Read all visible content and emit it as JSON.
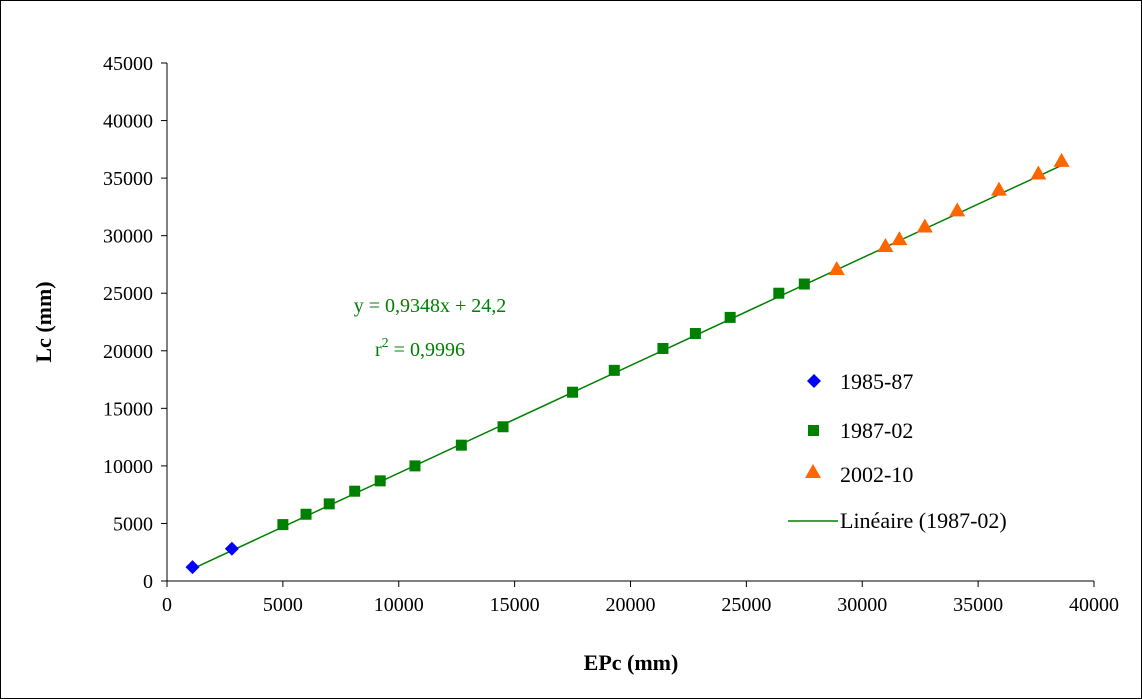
{
  "chart_data": {
    "type": "scatter",
    "xlabel": "EPc (mm)",
    "ylabel": "Lc (mm)",
    "xlim": [
      0,
      40000
    ],
    "ylim": [
      0,
      45000
    ],
    "xticks": [
      "0",
      "5000",
      "10000",
      "15000",
      "20000",
      "25000",
      "30000",
      "35000",
      "40000"
    ],
    "yticks": [
      "0",
      "5000",
      "10000",
      "15000",
      "20000",
      "25000",
      "30000",
      "35000",
      "40000",
      "45000"
    ],
    "grid": false,
    "legend_position": "right",
    "series": [
      {
        "name": "1985-87",
        "marker": "diamond",
        "color": "#0000ff",
        "points": [
          [
            1100,
            1200
          ],
          [
            2800,
            2800
          ]
        ]
      },
      {
        "name": "1987-02",
        "marker": "square",
        "color": "#008000",
        "points": [
          [
            5000,
            4900
          ],
          [
            6000,
            5800
          ],
          [
            7000,
            6700
          ],
          [
            8100,
            7800
          ],
          [
            9200,
            8700
          ],
          [
            10700,
            10000
          ],
          [
            12700,
            11800
          ],
          [
            14500,
            13400
          ],
          [
            17500,
            16400
          ],
          [
            19300,
            18300
          ],
          [
            21400,
            20200
          ],
          [
            22800,
            21500
          ],
          [
            24300,
            22900
          ],
          [
            26400,
            25000
          ],
          [
            27500,
            25800
          ]
        ]
      },
      {
        "name": "2002-10",
        "marker": "triangle",
        "color": "#ff6600",
        "points": [
          [
            28900,
            27100
          ],
          [
            31000,
            29100
          ],
          [
            31600,
            29700
          ],
          [
            32700,
            30800
          ],
          [
            34100,
            32200
          ],
          [
            35900,
            34000
          ],
          [
            37600,
            35400
          ],
          [
            38600,
            36500
          ]
        ]
      }
    ],
    "trendline": {
      "name": "Linéaire (1987-02)",
      "color": "#008000",
      "slope": 0.9348,
      "intercept": 24.2,
      "x_range": [
        1000,
        38700
      ]
    },
    "annotations": {
      "equation": "y = 0,9348x + 24,2",
      "r2_base": "r",
      "r2_sup": "2",
      "r2_rest": " = 0,9996",
      "color": "#008000"
    }
  }
}
